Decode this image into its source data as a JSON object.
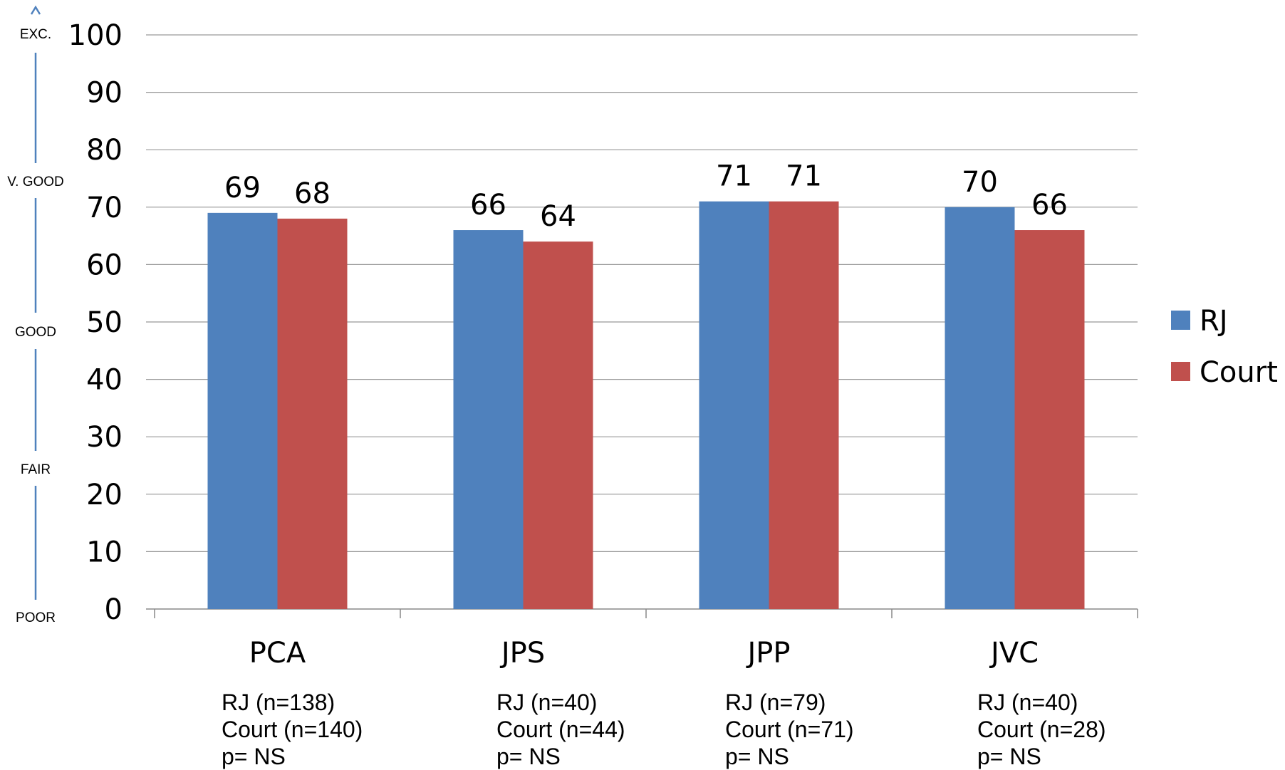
{
  "chart_data": {
    "type": "bar",
    "categories": [
      "PCA",
      "JPS",
      "JPP",
      "JVC"
    ],
    "series": [
      {
        "name": "RJ",
        "color": "#4F81BD",
        "values": [
          69,
          66,
          71,
          70
        ]
      },
      {
        "name": "Court",
        "color": "#C0504D",
        "values": [
          68,
          64,
          71,
          66
        ]
      }
    ],
    "ylim": [
      0,
      100
    ],
    "yticks": [
      0,
      10,
      20,
      30,
      40,
      50,
      60,
      70,
      80,
      90,
      100
    ],
    "grid": true,
    "legend": "right",
    "rating_scale": [
      "EXC.",
      "V. GOOD",
      "GOOD",
      "FAIR",
      "POOR"
    ],
    "notes": [
      [
        "RJ (n=138)",
        "Court (n=140)",
        "p= NS"
      ],
      [
        "RJ (n=40)",
        "Court (n=44)",
        "p= NS"
      ],
      [
        "RJ (n=79)",
        "Court (n=71)",
        "p= NS"
      ],
      [
        "RJ (n=40)",
        "Court (n=28)",
        "p= NS"
      ]
    ]
  }
}
